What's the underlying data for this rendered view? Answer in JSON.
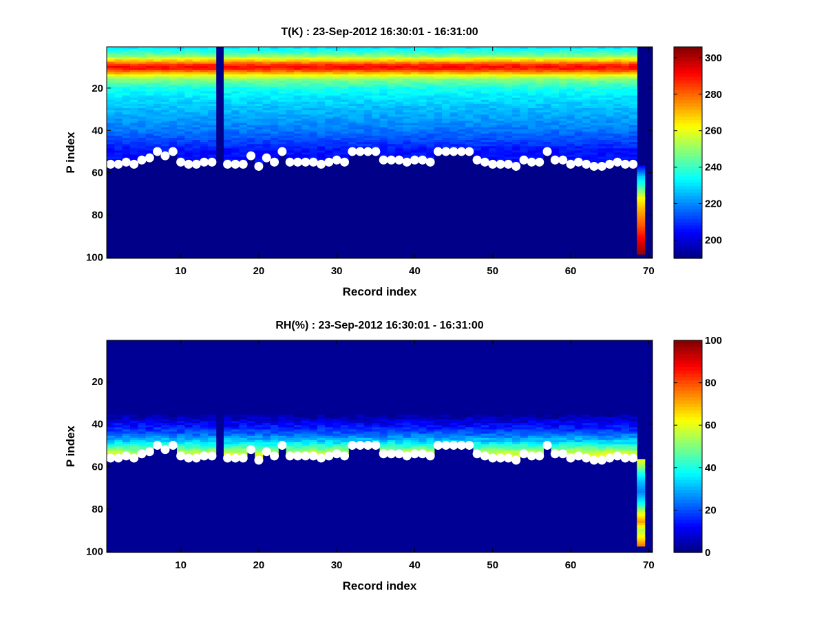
{
  "chart_data": [
    {
      "type": "heatmap",
      "title": "T(K) : 23-Sep-2012 16:30:01 - 16:31:00",
      "xlabel": "Record index",
      "ylabel": "P index",
      "xlim": [
        1,
        70
      ],
      "ylim": [
        1,
        100
      ],
      "y_reversed": true,
      "xticks": [
        10,
        20,
        30,
        40,
        50,
        60,
        70
      ],
      "yticks": [
        20,
        40,
        60,
        80,
        100
      ],
      "colorbar": {
        "range": [
          190,
          306
        ],
        "ticks": [
          200,
          220,
          240,
          260,
          280,
          300
        ]
      },
      "colormap": "jet",
      "field": {
        "background_value": 191,
        "missing_column": 15,
        "ground_profile_column": 69,
        "ground_profile": [
          [
            57,
            205
          ],
          [
            62,
            228
          ],
          [
            66,
            238
          ],
          [
            72,
            262
          ],
          [
            78,
            272
          ],
          [
            85,
            282
          ],
          [
            91,
            292
          ],
          [
            96,
            300
          ],
          [
            98,
            302
          ]
        ],
        "profile": [
          [
            1,
            232
          ],
          [
            3,
            240
          ],
          [
            5,
            250
          ],
          [
            7,
            268
          ],
          [
            9,
            286
          ],
          [
            10,
            290
          ],
          [
            11,
            288
          ],
          [
            12,
            280
          ],
          [
            14,
            262
          ],
          [
            16,
            248
          ],
          [
            20,
            236
          ],
          [
            25,
            230
          ],
          [
            30,
            226
          ],
          [
            35,
            222
          ],
          [
            40,
            218
          ],
          [
            45,
            212
          ],
          [
            50,
            206
          ]
        ]
      },
      "series": [
        {
          "name": "boundary points",
          "x": [
            1,
            2,
            3,
            4,
            5,
            6,
            7,
            8,
            9,
            10,
            11,
            12,
            13,
            14,
            16,
            17,
            18,
            19,
            20,
            21,
            22,
            23,
            24,
            25,
            26,
            27,
            28,
            29,
            30,
            31,
            32,
            33,
            34,
            35,
            36,
            37,
            38,
            39,
            40,
            41,
            42,
            43,
            44,
            45,
            46,
            47,
            48,
            49,
            50,
            51,
            52,
            53,
            54,
            55,
            56,
            57,
            58,
            59,
            60,
            61,
            62,
            63,
            64,
            65,
            66,
            67,
            68
          ],
          "y": [
            56,
            56,
            55,
            56,
            54,
            53,
            50,
            52,
            50,
            55,
            56,
            56,
            55,
            55,
            56,
            56,
            56,
            52,
            57,
            53,
            55,
            50,
            55,
            55,
            55,
            55,
            56,
            55,
            54,
            55,
            50,
            50,
            50,
            50,
            54,
            54,
            54,
            55,
            54,
            54,
            55,
            50,
            50,
            50,
            50,
            50,
            54,
            55,
            56,
            56,
            56,
            57,
            54,
            55,
            55,
            50,
            54,
            54,
            56,
            55,
            56,
            57,
            57,
            56,
            55,
            56,
            56
          ]
        }
      ]
    },
    {
      "type": "heatmap",
      "title": "RH(%) : 23-Sep-2012 16:30:01 - 16:31:00",
      "xlabel": "Record index",
      "ylabel": "P index",
      "xlim": [
        1,
        70
      ],
      "ylim": [
        1,
        100
      ],
      "y_reversed": true,
      "xticks": [
        10,
        20,
        30,
        40,
        50,
        60,
        70
      ],
      "yticks": [
        20,
        40,
        60,
        80,
        100
      ],
      "colorbar": {
        "range": [
          0,
          100
        ],
        "ticks": [
          0,
          20,
          40,
          60,
          80,
          100
        ]
      },
      "colormap": "jet",
      "field": {
        "background_value": 2,
        "missing_column": 15,
        "ground_profile_column": 69,
        "ground_profile": [
          [
            57,
            60
          ],
          [
            60,
            52
          ],
          [
            64,
            38
          ],
          [
            68,
            30
          ],
          [
            72,
            25
          ],
          [
            78,
            40
          ],
          [
            82,
            60
          ],
          [
            86,
            72
          ],
          [
            90,
            55
          ],
          [
            94,
            65
          ],
          [
            97,
            75
          ]
        ],
        "profile": [
          [
            36,
            4
          ],
          [
            40,
            12
          ],
          [
            44,
            20
          ],
          [
            48,
            32
          ],
          [
            51,
            45
          ],
          [
            53,
            55
          ],
          [
            55,
            62
          ],
          [
            57,
            66
          ]
        ]
      },
      "series": [
        {
          "name": "boundary points",
          "x": [
            1,
            2,
            3,
            4,
            5,
            6,
            7,
            8,
            9,
            10,
            11,
            12,
            13,
            14,
            16,
            17,
            18,
            19,
            20,
            21,
            22,
            23,
            24,
            25,
            26,
            27,
            28,
            29,
            30,
            31,
            32,
            33,
            34,
            35,
            36,
            37,
            38,
            39,
            40,
            41,
            42,
            43,
            44,
            45,
            46,
            47,
            48,
            49,
            50,
            51,
            52,
            53,
            54,
            55,
            56,
            57,
            58,
            59,
            60,
            61,
            62,
            63,
            64,
            65,
            66,
            67,
            68
          ],
          "y": [
            56,
            56,
            55,
            56,
            54,
            53,
            50,
            52,
            50,
            55,
            56,
            56,
            55,
            55,
            56,
            56,
            56,
            52,
            57,
            53,
            55,
            50,
            55,
            55,
            55,
            55,
            56,
            55,
            54,
            55,
            50,
            50,
            50,
            50,
            54,
            54,
            54,
            55,
            54,
            54,
            55,
            50,
            50,
            50,
            50,
            50,
            54,
            55,
            56,
            56,
            56,
            57,
            54,
            55,
            55,
            50,
            54,
            54,
            56,
            55,
            56,
            57,
            57,
            56,
            55,
            56,
            56
          ]
        }
      ]
    }
  ]
}
